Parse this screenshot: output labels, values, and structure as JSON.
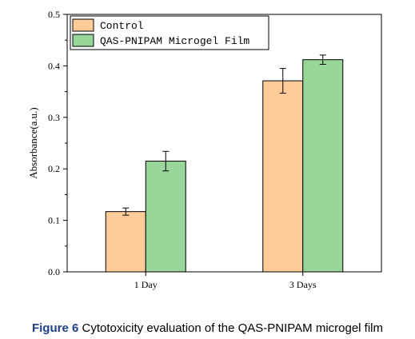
{
  "chart_data": {
    "type": "bar",
    "ylabel": "Absorbance(a.u.)",
    "xlabel": "",
    "categories": [
      "1 Day",
      "3 Days"
    ],
    "ylim": [
      0.0,
      0.5
    ],
    "yticks": [
      "0.0",
      "0.1",
      "0.2",
      "0.3",
      "0.4",
      "0.5"
    ],
    "series": [
      {
        "name": "Control",
        "values": [
          0.117,
          0.371
        ],
        "errors": [
          0.007,
          0.024
        ],
        "color": "#ffcc99"
      },
      {
        "name": "QAS-PNIPAM Microgel Film",
        "values": [
          0.215,
          0.412
        ],
        "errors": [
          0.019,
          0.009
        ],
        "color": "#99d699"
      }
    ],
    "legend_position": "top-left",
    "grid": false
  },
  "caption": {
    "label": "Figure 6",
    "text": " Cytotoxicity evaluation of the QAS-PNIPAM microgel film"
  }
}
